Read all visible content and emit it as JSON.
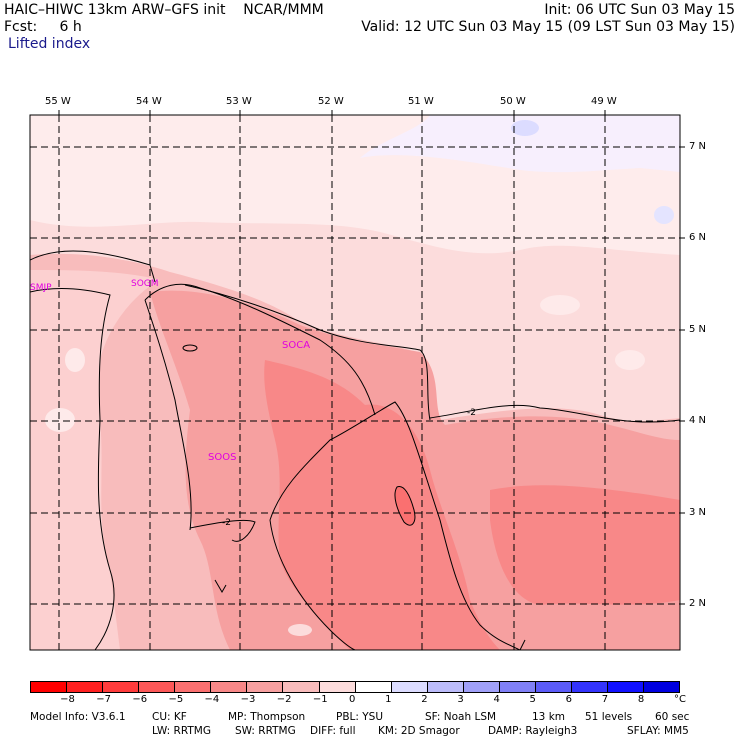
{
  "header": {
    "line1_left": "HAIC–HIWC 13km ARW–GFS init    NCAR/MMM",
    "line1_right": "Init: 06 UTC Sun 03 May 15",
    "line2_left": "Fcst:     6 h",
    "line2_right": "Valid: 12 UTC Sun 03 May 15 (09 LST Sun 03 May 15)",
    "field": "Lifted index"
  },
  "map": {
    "lon_labels": [
      "55 W",
      "54 W",
      "53 W",
      "52 W",
      "51 W",
      "50 W",
      "49 W"
    ],
    "lat_labels": [
      "7 N",
      "6 N",
      "5 N",
      "4 N",
      "3 N",
      "2 N"
    ],
    "stations": [
      "SMJP",
      "SOGM",
      "SOCA",
      "SOOS"
    ],
    "contour_labels": [
      "-2",
      "-2"
    ]
  },
  "colorbar": {
    "unit": "°C",
    "tick_labels": [
      "−8",
      "−7",
      "−6",
      "−5",
      "−4",
      "−3",
      "−2",
      "−1",
      "0",
      "1",
      "2",
      "3",
      "4",
      "5",
      "6",
      "7",
      "8"
    ],
    "colors": [
      "#ff0000",
      "#ff2020",
      "#ff3c3c",
      "#fc5858",
      "#fa7070",
      "#f88888",
      "#f6a0a0",
      "#f8bcbc",
      "#fcdcdc",
      "#ffffff",
      "#dcdcff",
      "#bcbcfa",
      "#a0a0f8",
      "#8080f6",
      "#5c5cf8",
      "#3434fc",
      "#1010ff",
      "#0000e0"
    ]
  },
  "footer": {
    "line1": [
      "Model Info: V3.6.1",
      "CU: KF",
      "MP: Thompson",
      "PBL: YSU",
      "SF: Noah LSM",
      "13 km",
      "51 levels",
      "60 sec"
    ],
    "line2": [
      "LW: RRTMG",
      "SW: RRTMG",
      "DIFF: full",
      "KM: 2D Smagor",
      "DAMP: Rayleigh3",
      "SFLAY: MM5"
    ]
  }
}
